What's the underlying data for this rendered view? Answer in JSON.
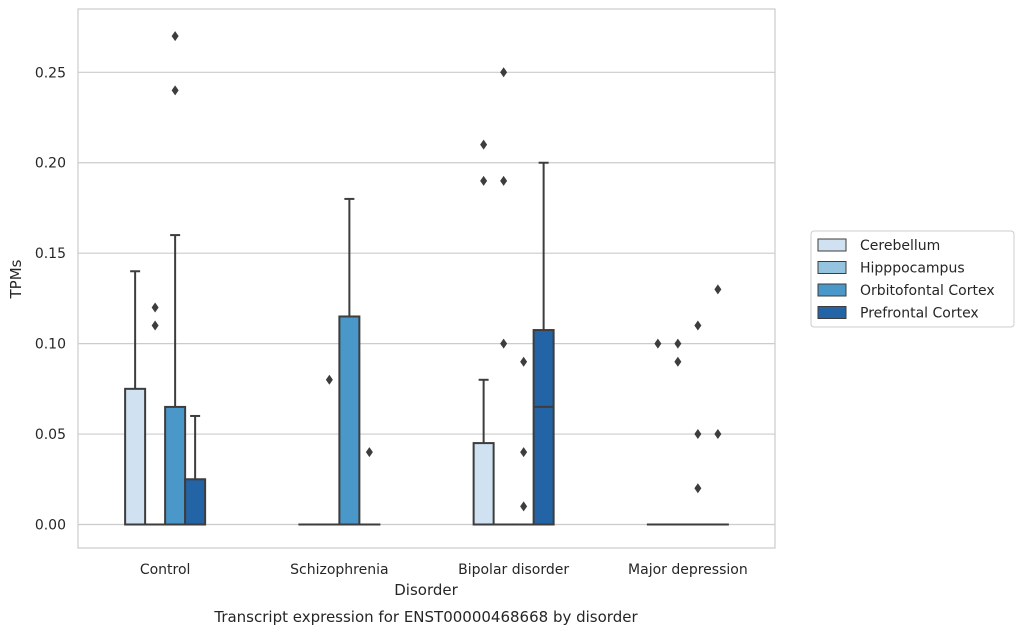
{
  "chart_data": {
    "type": "box",
    "title": "Transcript expression for ENST00000468668 by disorder",
    "xlabel": "Disorder",
    "ylabel": "TPMs",
    "ylim": [
      -0.013,
      0.285
    ],
    "yticks": [
      0.0,
      0.05,
      0.1,
      0.15,
      0.2,
      0.25
    ],
    "ytick_labels": [
      "0.00",
      "0.05",
      "0.10",
      "0.15",
      "0.20",
      "0.25"
    ],
    "grid": true,
    "legend_position": "right",
    "categories": [
      "Control",
      "Schizophrenia",
      "Bipolar disorder",
      "Major depression"
    ],
    "series": [
      {
        "name": "Cerebellum",
        "color": "#d0e1f2",
        "boxes": [
          {
            "whisker_low": 0.0,
            "q1": 0.0,
            "median": 0.0,
            "q3": 0.075,
            "whisker_high": 0.14,
            "outliers": []
          },
          {
            "whisker_low": 0.0,
            "q1": 0.0,
            "median": 0.0,
            "q3": 0.0,
            "whisker_high": 0.0,
            "outliers": []
          },
          {
            "whisker_low": 0.0,
            "q1": 0.0,
            "median": 0.0,
            "q3": 0.045,
            "whisker_high": 0.08,
            "outliers": [
              0.21,
              0.19
            ]
          },
          {
            "whisker_low": 0.0,
            "q1": 0.0,
            "median": 0.0,
            "q3": 0.0,
            "whisker_high": 0.0,
            "outliers": [
              0.1
            ]
          }
        ]
      },
      {
        "name": "Hipppocampus",
        "color": "#94c4df",
        "boxes": [
          {
            "whisker_low": 0.0,
            "q1": 0.0,
            "median": 0.0,
            "q3": 0.0,
            "whisker_high": 0.0,
            "outliers": [
              0.12,
              0.11
            ]
          },
          {
            "whisker_low": 0.0,
            "q1": 0.0,
            "median": 0.0,
            "q3": 0.0,
            "whisker_high": 0.0,
            "outliers": [
              0.08
            ]
          },
          {
            "whisker_low": 0.0,
            "q1": 0.0,
            "median": 0.0,
            "q3": 0.0,
            "whisker_high": 0.0,
            "outliers": [
              0.25,
              0.19,
              0.1
            ]
          },
          {
            "whisker_low": 0.0,
            "q1": 0.0,
            "median": 0.0,
            "q3": 0.0,
            "whisker_high": 0.0,
            "outliers": [
              0.1,
              0.09
            ]
          }
        ]
      },
      {
        "name": "Orbitofontal Cortex",
        "color": "#4a98c9",
        "boxes": [
          {
            "whisker_low": 0.0,
            "q1": 0.0,
            "median": 0.0,
            "q3": 0.065,
            "whisker_high": 0.16,
            "outliers": [
              0.27,
              0.24
            ]
          },
          {
            "whisker_low": 0.0,
            "q1": 0.0,
            "median": 0.0,
            "q3": 0.115,
            "whisker_high": 0.18,
            "outliers": []
          },
          {
            "whisker_low": 0.0,
            "q1": 0.0,
            "median": 0.0,
            "q3": 0.0,
            "whisker_high": 0.0,
            "outliers": [
              0.09,
              0.04,
              0.01
            ]
          },
          {
            "whisker_low": 0.0,
            "q1": 0.0,
            "median": 0.0,
            "q3": 0.0,
            "whisker_high": 0.0,
            "outliers": [
              0.11,
              0.05,
              0.02
            ]
          }
        ]
      },
      {
        "name": "Prefrontal Cortex",
        "color": "#2264a6",
        "boxes": [
          {
            "whisker_low": 0.0,
            "q1": 0.0,
            "median": 0.0,
            "q3": 0.025,
            "whisker_high": 0.06,
            "outliers": []
          },
          {
            "whisker_low": 0.0,
            "q1": 0.0,
            "median": 0.0,
            "q3": 0.0,
            "whisker_high": 0.0,
            "outliers": [
              0.04
            ]
          },
          {
            "whisker_low": 0.0,
            "q1": 0.0,
            "median": 0.065,
            "q3": 0.1075,
            "whisker_high": 0.2,
            "outliers": []
          },
          {
            "whisker_low": 0.0,
            "q1": 0.0,
            "median": 0.0,
            "q3": 0.0,
            "whisker_high": 0.0,
            "outliers": [
              0.13,
              0.05
            ]
          }
        ]
      }
    ]
  }
}
